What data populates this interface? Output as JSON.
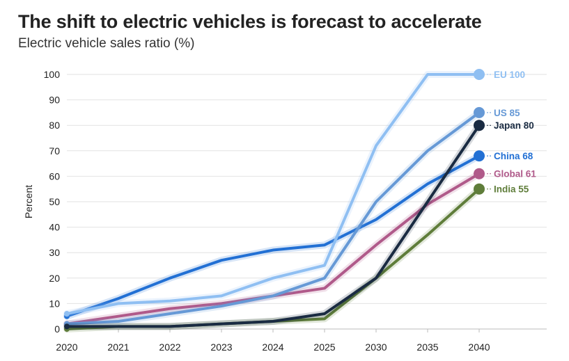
{
  "header": {
    "title": "The shift to electric vehicles is forecast to accelerate",
    "subtitle": "Electric vehicle sales ratio (%)"
  },
  "chart_data": {
    "type": "line",
    "title": "The shift to electric vehicles is forecast to accelerate",
    "subtitle": "Electric vehicle sales ratio (%)",
    "xlabel": "",
    "ylabel": "Percent",
    "categories": [
      "2020",
      "2021",
      "2022",
      "2023",
      "2024",
      "2025",
      "2030",
      "2035",
      "2040"
    ],
    "ylim": [
      0,
      100
    ],
    "yticks": [
      0,
      10,
      20,
      30,
      40,
      50,
      60,
      70,
      80,
      90,
      100
    ],
    "grid": true,
    "legend": "end-of-line labels (right)",
    "series": [
      {
        "name": "EU",
        "end_label": "EU 100",
        "color": "#8fbff2",
        "values": [
          6,
          10,
          11,
          13,
          20,
          25,
          72,
          100,
          100
        ]
      },
      {
        "name": "US",
        "end_label": "US 85",
        "color": "#6699d6",
        "values": [
          2,
          3,
          6,
          9,
          13,
          20,
          50,
          70,
          85
        ]
      },
      {
        "name": "Japan",
        "end_label": "Japan 80",
        "color": "#1a2b42",
        "values": [
          1,
          1,
          1,
          2,
          3,
          6,
          20,
          50,
          80
        ]
      },
      {
        "name": "China",
        "end_label": "China 68",
        "color": "#2270d4",
        "values": [
          5,
          12,
          20,
          27,
          31,
          33,
          43,
          57,
          68
        ]
      },
      {
        "name": "Global",
        "end_label": "Global 61",
        "color": "#b05a8a",
        "values": [
          2,
          5,
          8,
          10,
          13,
          16,
          33,
          49,
          61
        ]
      },
      {
        "name": "India",
        "end_label": "India 55",
        "color": "#5f7d3a",
        "values": [
          0,
          1,
          1,
          2,
          3,
          4,
          20,
          37,
          55
        ]
      }
    ]
  }
}
